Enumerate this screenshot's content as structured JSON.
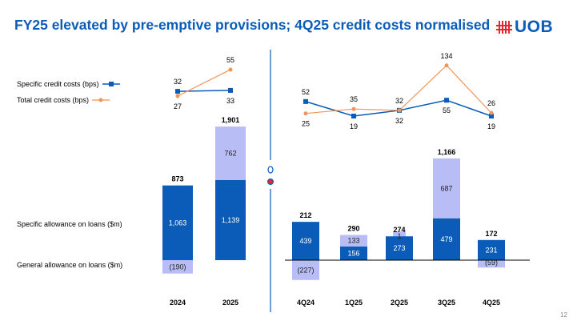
{
  "title": "FY25 elevated by pre-emptive provisions; 4Q25 credit costs normalised",
  "logo_text": "UOB",
  "page_number": "12",
  "legend": {
    "specific": "Specific credit costs (bps)",
    "total": "Total credit costs (bps)"
  },
  "row_labels": {
    "specific_allowance": "Specific allowance on loans ($m)",
    "general_allowance": "General allowance on loans ($m)"
  },
  "colors": {
    "specific": "#0a5cb8",
    "general": "#b8bdf5",
    "total_line": "#f0955a",
    "title": "#0a5cb8",
    "logo_mark": "#e3262f"
  },
  "chart_data": [
    {
      "type": "bar",
      "stacked": true,
      "categories": [
        "2024",
        "2025"
      ],
      "series": [
        {
          "name": "Specific allowance on loans ($m)",
          "values": [
            1063,
            1139
          ],
          "labels": [
            "1,063",
            "1,139"
          ]
        },
        {
          "name": "General allowance on loans ($m)",
          "values": [
            -190,
            762
          ],
          "labels": [
            "(190)",
            "762"
          ]
        }
      ],
      "totals": [
        "873",
        "1,901"
      ],
      "lines": [
        {
          "name": "Specific credit costs (bps)",
          "values": [
            32,
            33
          ]
        },
        {
          "name": "Total credit costs (bps)",
          "values": [
            27,
            55
          ]
        }
      ]
    },
    {
      "type": "bar",
      "stacked": true,
      "categories": [
        "4Q24",
        "1Q25",
        "2Q25",
        "3Q25",
        "4Q25"
      ],
      "series": [
        {
          "name": "Specific allowance on loans ($m)",
          "values": [
            439,
            156,
            273,
            479,
            231
          ],
          "labels": [
            "439",
            "156",
            "273",
            "479",
            "231"
          ]
        },
        {
          "name": "General allowance on loans ($m)",
          "values": [
            -227,
            133,
            1,
            687,
            -59
          ],
          "labels": [
            "(227)",
            "133",
            "1",
            "687",
            "(59)"
          ]
        }
      ],
      "totals": [
        "212",
        "290",
        "274",
        "1,166",
        "172"
      ],
      "lines": [
        {
          "name": "Specific credit costs (bps)",
          "values": [
            52,
            19,
            32,
            55,
            19
          ]
        },
        {
          "name": "Total credit costs (bps)",
          "values": [
            25,
            35,
            32,
            134,
            26
          ]
        }
      ]
    }
  ]
}
